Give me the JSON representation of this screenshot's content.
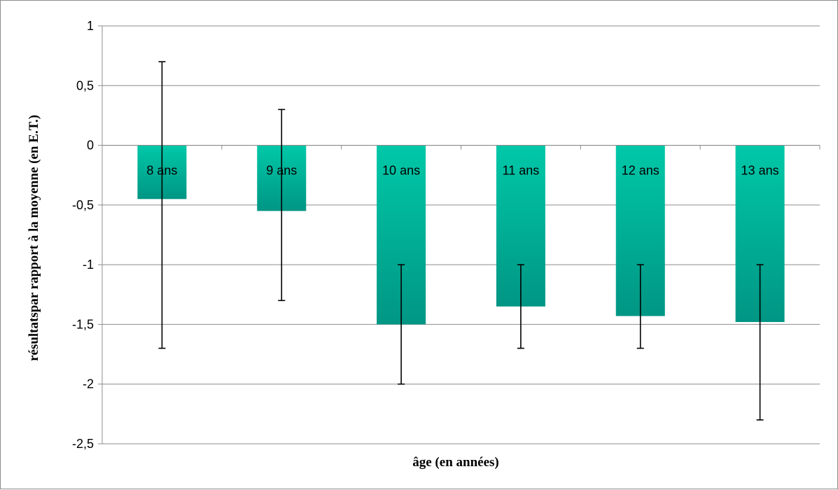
{
  "chart_data": {
    "type": "bar",
    "categories": [
      "8 ans",
      "9 ans",
      "10 ans",
      "11 ans",
      "12 ans",
      "13 ans"
    ],
    "values": [
      -0.45,
      -0.55,
      -1.5,
      -1.35,
      -1.43,
      -1.48
    ],
    "error_bars": [
      {
        "high": 0.7,
        "low": -1.7
      },
      {
        "high": 0.3,
        "low": -1.3
      },
      {
        "high": -1.0,
        "low": -2.0
      },
      {
        "high": -1.0,
        "low": -1.7
      },
      {
        "high": -1.0,
        "low": -1.7
      },
      {
        "high": -1.0,
        "low": -2.3
      }
    ],
    "xlabel": "âge (en années)",
    "ylabel": "résultatspar rapport à la moyenne (en E.T.)",
    "ylim": [
      -2.5,
      1
    ],
    "yticks": [
      "1",
      "0,5",
      "0",
      "-0,5",
      "-1",
      "-1,5",
      "-2",
      "-2,5"
    ],
    "grid": true,
    "bar_color_top": "#00c8a8",
    "bar_color_bottom": "#009684"
  }
}
